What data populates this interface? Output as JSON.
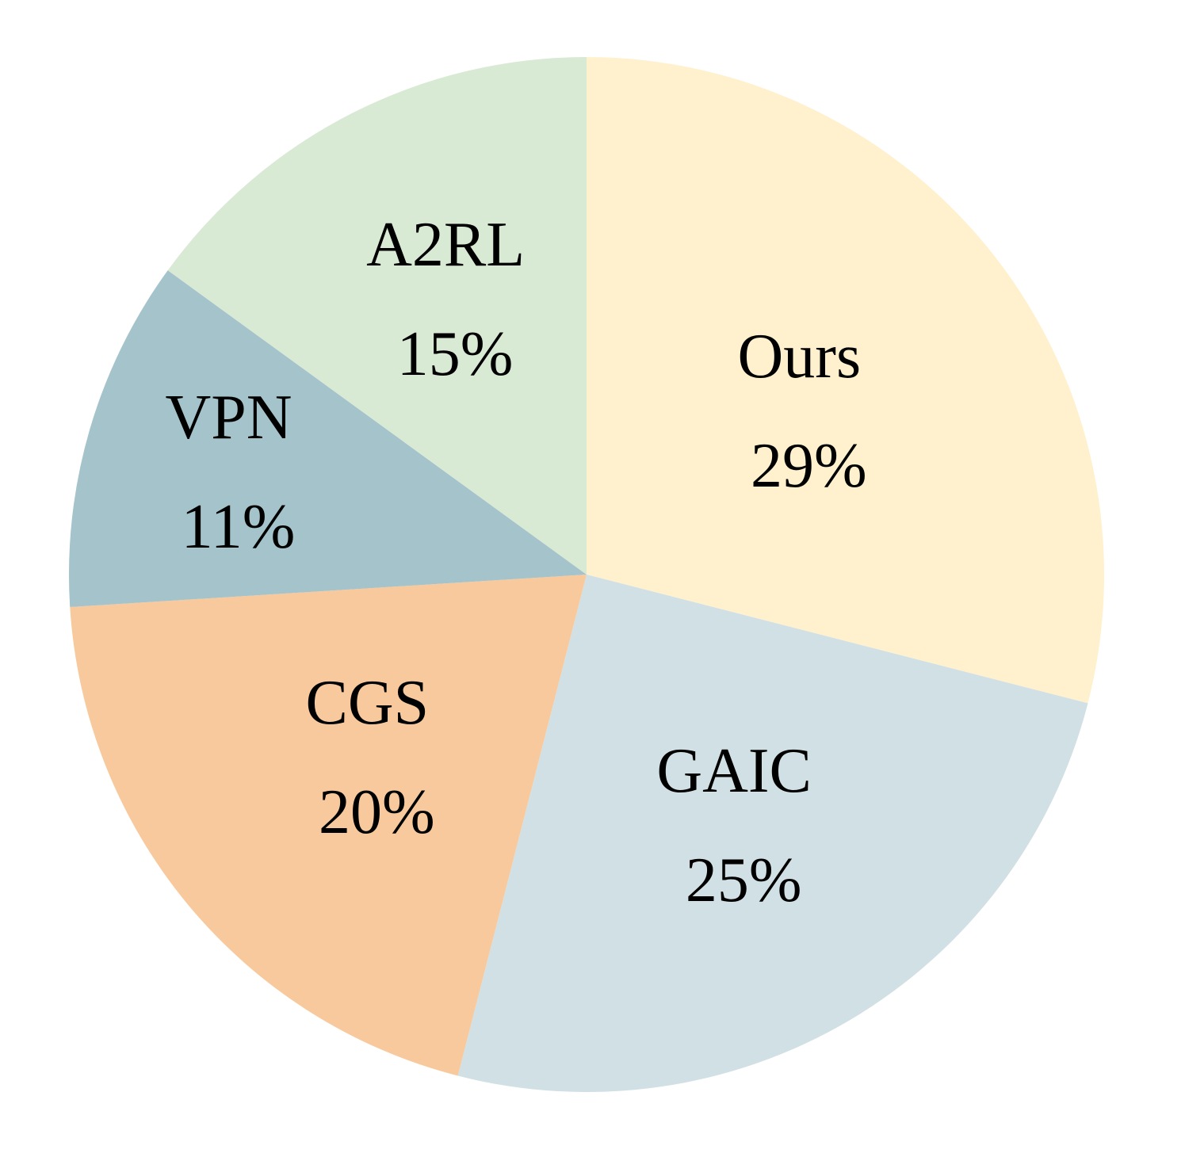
{
  "chart_data": {
    "type": "pie",
    "title": "",
    "slices": [
      {
        "label": "Ours",
        "value": 29,
        "value_label": "29%",
        "color": "#FFF1CE"
      },
      {
        "label": "GAIC",
        "value": 25,
        "value_label": "25%",
        "color": "#D1E0E4"
      },
      {
        "label": "CGS",
        "value": 20,
        "value_label": "20%",
        "color": "#F7C99C"
      },
      {
        "label": "VPN",
        "value": 11,
        "value_label": "11%",
        "color": "#A4C3CA"
      },
      {
        "label": "A2RL",
        "value": 15,
        "value_label": "15%",
        "color": "#D8E9D4"
      }
    ],
    "start_angle": "12 o'clock",
    "direction": "clockwise",
    "legend": "none"
  }
}
